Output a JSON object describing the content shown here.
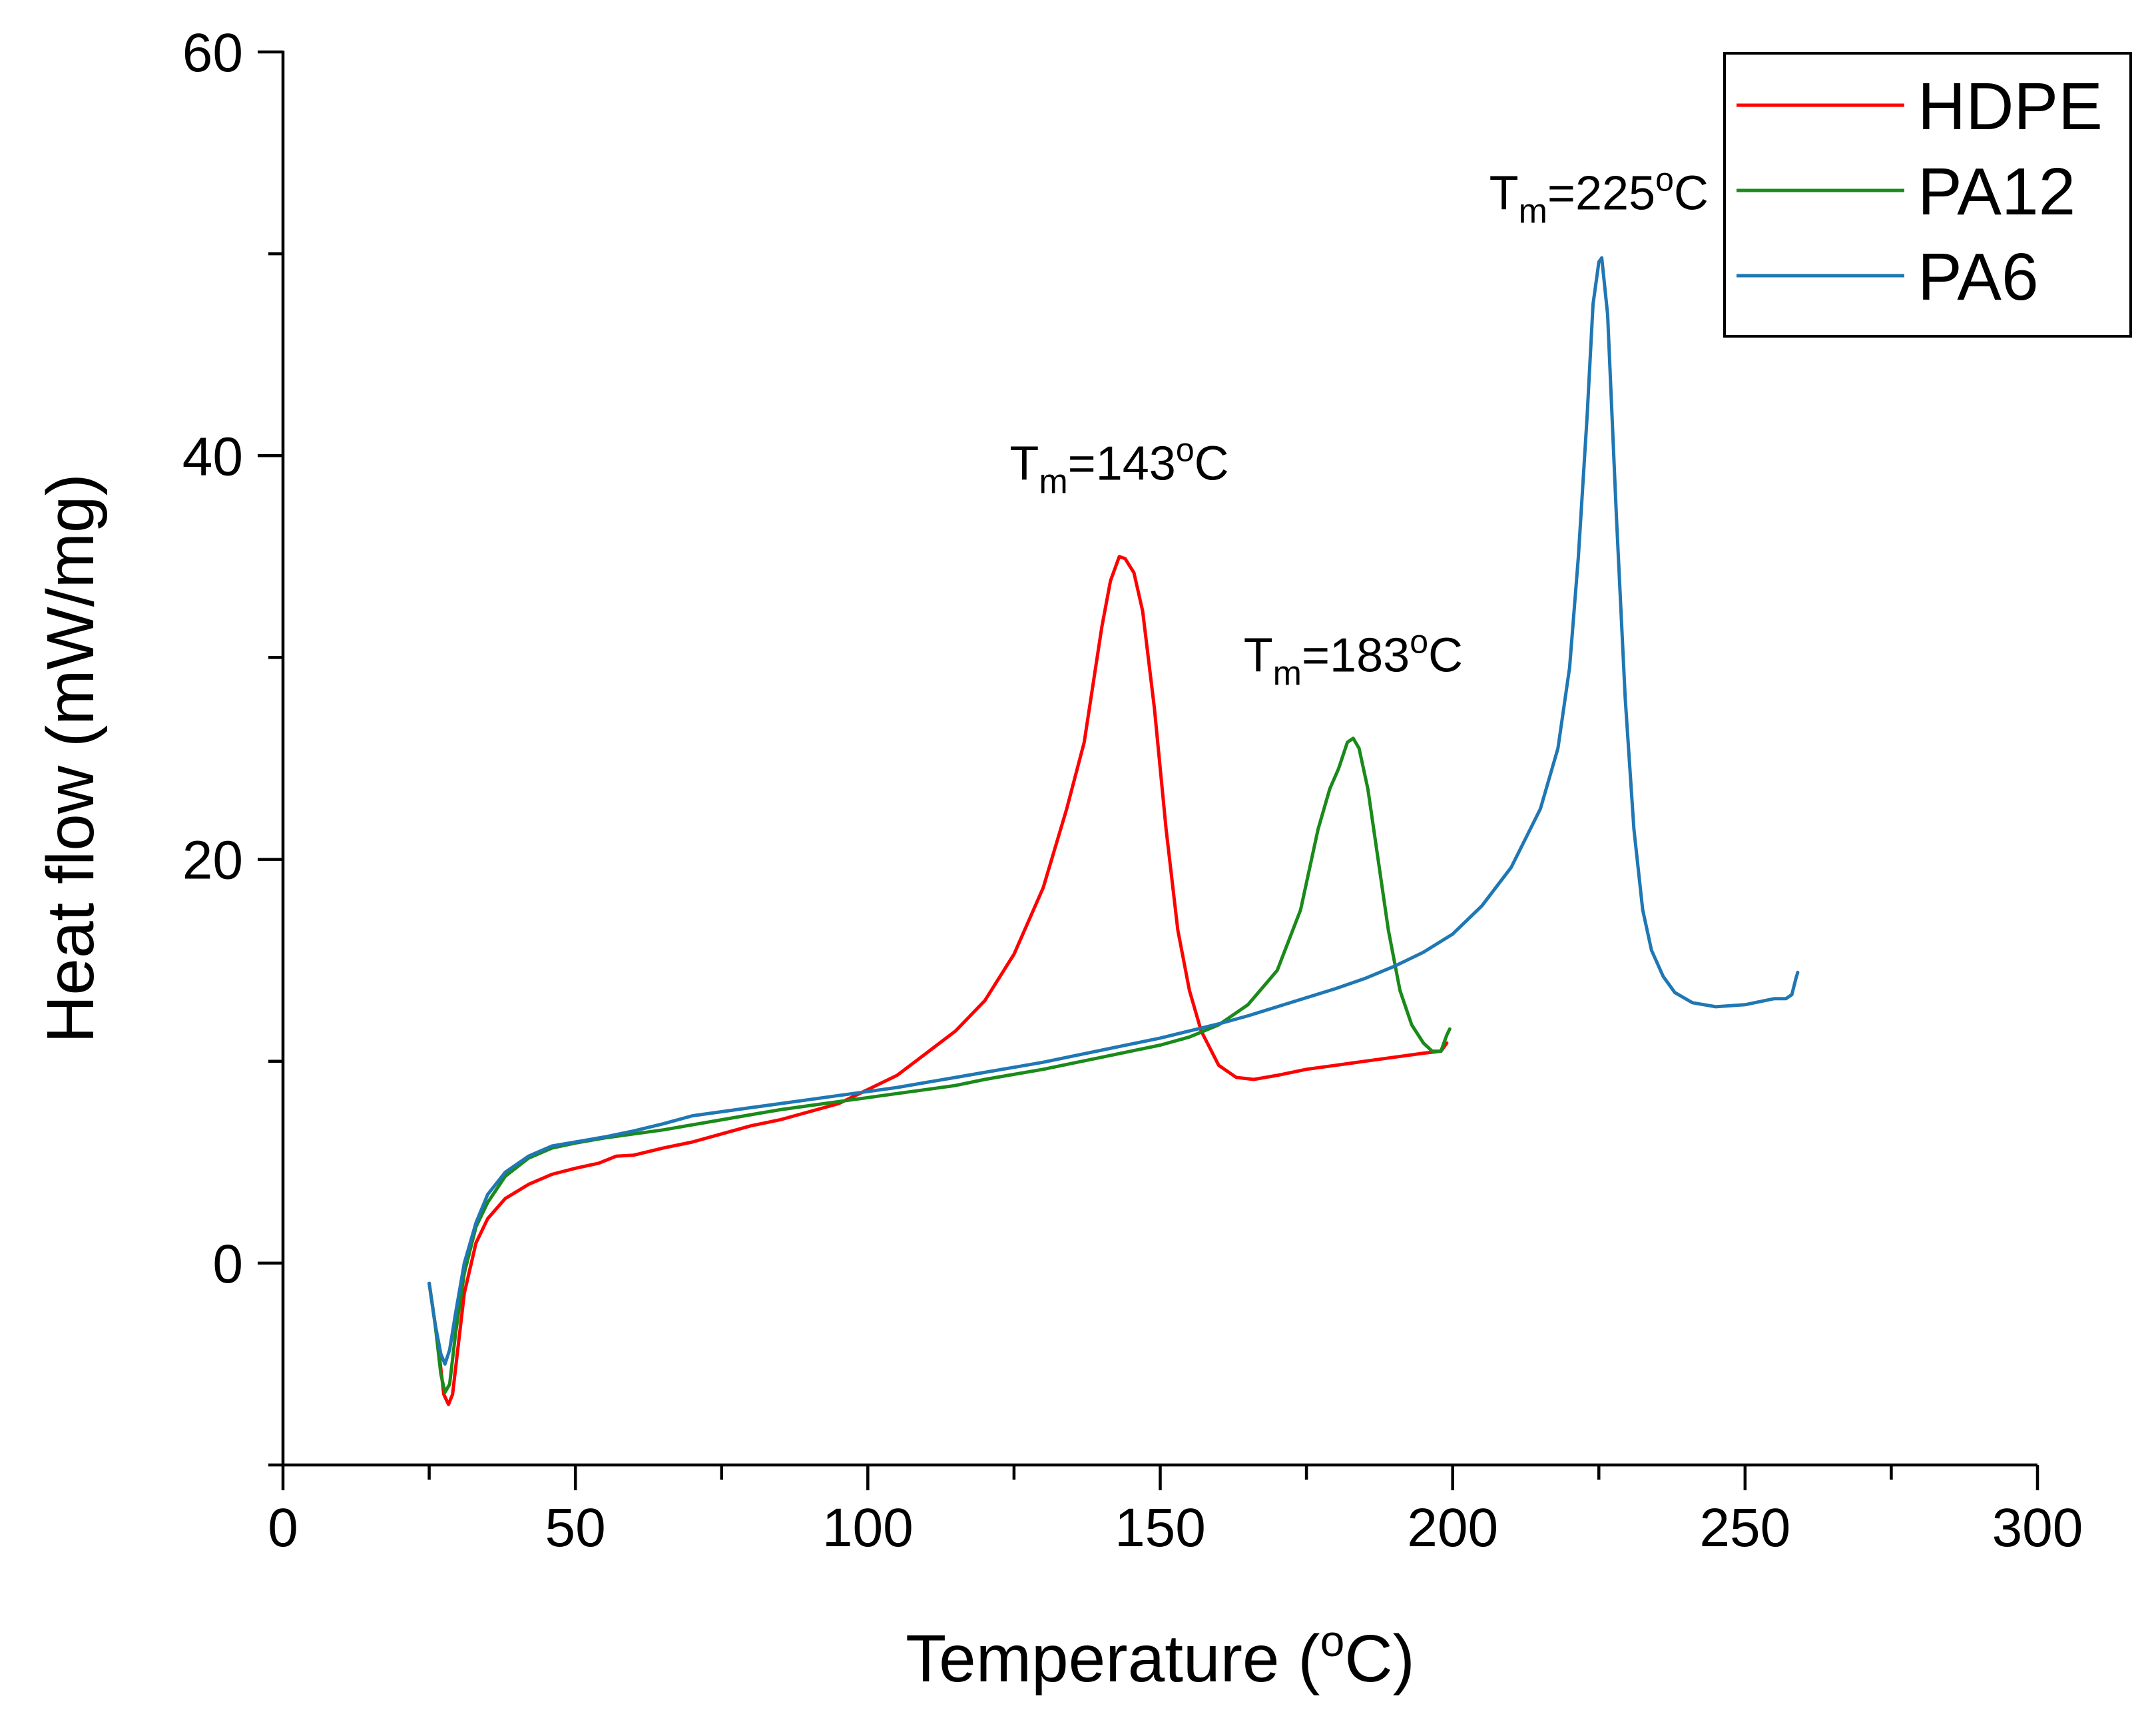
{
  "chart_data": {
    "type": "line",
    "title": "",
    "xlabel": "Temperature (",
    "xlabel_sup": "o",
    "xlabel_end": "C)",
    "ylabel": "Heat flow (mW/mg)",
    "xlim": [
      0,
      300
    ],
    "ylim": [
      -10,
      60
    ],
    "xticks": [
      0,
      50,
      100,
      150,
      200,
      250,
      300
    ],
    "yticks": [
      0,
      20,
      40,
      60
    ],
    "grid": false,
    "legend_position": "top-right",
    "series": [
      {
        "name": "HDPE",
        "color": "#ff0000",
        "points": [
          [
            25,
            -1
          ],
          [
            26.5,
            -4
          ],
          [
            27.5,
            -6.5
          ],
          [
            28.3,
            -7
          ],
          [
            29,
            -6.5
          ],
          [
            30,
            -4
          ],
          [
            31,
            -1.5
          ],
          [
            33,
            1
          ],
          [
            35,
            2.2
          ],
          [
            38,
            3.2
          ],
          [
            42,
            3.9
          ],
          [
            46,
            4.4
          ],
          [
            50,
            4.7
          ],
          [
            54,
            4.95
          ],
          [
            57,
            5.3
          ],
          [
            60,
            5.35
          ],
          [
            65,
            5.7
          ],
          [
            70,
            6
          ],
          [
            75,
            6.4
          ],
          [
            80,
            6.8
          ],
          [
            85,
            7.1
          ],
          [
            90,
            7.5
          ],
          [
            95,
            7.9
          ],
          [
            100,
            8.6
          ],
          [
            105,
            9.3
          ],
          [
            110,
            10.4
          ],
          [
            115,
            11.5
          ],
          [
            120,
            13
          ],
          [
            125,
            15.3
          ],
          [
            130,
            18.6
          ],
          [
            134,
            22.5
          ],
          [
            137,
            25.8
          ],
          [
            140,
            31.5
          ],
          [
            141.5,
            33.8
          ],
          [
            143,
            35
          ],
          [
            144,
            34.9
          ],
          [
            145.5,
            34.2
          ],
          [
            147,
            32.3
          ],
          [
            149,
            27.5
          ],
          [
            151,
            21.5
          ],
          [
            153,
            16.5
          ],
          [
            155,
            13.5
          ],
          [
            157,
            11.5
          ],
          [
            160,
            9.8
          ],
          [
            163,
            9.2
          ],
          [
            166,
            9.1
          ],
          [
            170,
            9.3
          ],
          [
            175,
            9.6
          ],
          [
            180,
            9.8
          ],
          [
            185,
            10
          ],
          [
            190,
            10.2
          ],
          [
            195,
            10.4
          ],
          [
            198,
            10.5
          ],
          [
            199,
            10.9
          ]
        ]
      },
      {
        "name": "PA12",
        "color": "#1a8a1a",
        "points": [
          [
            25,
            -1
          ],
          [
            26,
            -3
          ],
          [
            27,
            -5.5
          ],
          [
            27.7,
            -6.4
          ],
          [
            28.5,
            -6
          ],
          [
            29.5,
            -3.5
          ],
          [
            31,
            -0.5
          ],
          [
            33,
            1.8
          ],
          [
            35,
            3
          ],
          [
            38,
            4.3
          ],
          [
            42,
            5.2
          ],
          [
            46,
            5.7
          ],
          [
            50,
            5.95
          ],
          [
            55,
            6.2
          ],
          [
            60,
            6.4
          ],
          [
            65,
            6.6
          ],
          [
            70,
            6.85
          ],
          [
            75,
            7.1
          ],
          [
            80,
            7.35
          ],
          [
            85,
            7.6
          ],
          [
            90,
            7.8
          ],
          [
            95,
            8
          ],
          [
            100,
            8.2
          ],
          [
            105,
            8.4
          ],
          [
            110,
            8.6
          ],
          [
            115,
            8.8
          ],
          [
            120,
            9.1
          ],
          [
            125,
            9.35
          ],
          [
            130,
            9.6
          ],
          [
            135,
            9.9
          ],
          [
            140,
            10.2
          ],
          [
            145,
            10.5
          ],
          [
            150,
            10.8
          ],
          [
            155,
            11.2
          ],
          [
            160,
            11.8
          ],
          [
            165,
            12.8
          ],
          [
            170,
            14.5
          ],
          [
            174,
            17.5
          ],
          [
            177,
            21.5
          ],
          [
            179,
            23.5
          ],
          [
            180.5,
            24.5
          ],
          [
            182,
            25.8
          ],
          [
            183,
            26
          ],
          [
            184,
            25.5
          ],
          [
            185.5,
            23.5
          ],
          [
            187,
            20.5
          ],
          [
            189,
            16.5
          ],
          [
            191,
            13.5
          ],
          [
            193,
            11.8
          ],
          [
            195,
            10.9
          ],
          [
            196.5,
            10.5
          ],
          [
            198,
            10.5
          ],
          [
            199,
            11.3
          ],
          [
            199.5,
            11.6
          ]
        ]
      },
      {
        "name": "PA6",
        "color": "#1f77b4",
        "points": [
          [
            25,
            -1
          ],
          [
            26,
            -3
          ],
          [
            27,
            -4.5
          ],
          [
            27.7,
            -5
          ],
          [
            28.5,
            -4.3
          ],
          [
            29.5,
            -2.5
          ],
          [
            31,
            0
          ],
          [
            33,
            2
          ],
          [
            35,
            3.4
          ],
          [
            38,
            4.5
          ],
          [
            42,
            5.3
          ],
          [
            46,
            5.8
          ],
          [
            50,
            6
          ],
          [
            55,
            6.25
          ],
          [
            60,
            6.55
          ],
          [
            65,
            6.9
          ],
          [
            70,
            7.3
          ],
          [
            75,
            7.5
          ],
          [
            80,
            7.7
          ],
          [
            85,
            7.9
          ],
          [
            90,
            8.1
          ],
          [
            95,
            8.3
          ],
          [
            100,
            8.5
          ],
          [
            105,
            8.7
          ],
          [
            110,
            8.95
          ],
          [
            115,
            9.2
          ],
          [
            120,
            9.45
          ],
          [
            125,
            9.7
          ],
          [
            130,
            9.95
          ],
          [
            135,
            10.25
          ],
          [
            140,
            10.55
          ],
          [
            145,
            10.85
          ],
          [
            150,
            11.15
          ],
          [
            155,
            11.5
          ],
          [
            160,
            11.85
          ],
          [
            165,
            12.25
          ],
          [
            170,
            12.7
          ],
          [
            175,
            13.15
          ],
          [
            180,
            13.6
          ],
          [
            185,
            14.1
          ],
          [
            190,
            14.7
          ],
          [
            195,
            15.4
          ],
          [
            200,
            16.3
          ],
          [
            205,
            17.7
          ],
          [
            210,
            19.6
          ],
          [
            215,
            22.5
          ],
          [
            218,
            25.5
          ],
          [
            220,
            29.5
          ],
          [
            221.5,
            35
          ],
          [
            223,
            42
          ],
          [
            224,
            47.5
          ],
          [
            225,
            49.6
          ],
          [
            225.5,
            49.8
          ],
          [
            226.5,
            47
          ],
          [
            228,
            37
          ],
          [
            229.5,
            28
          ],
          [
            231,
            21.5
          ],
          [
            232.5,
            17.5
          ],
          [
            234,
            15.5
          ],
          [
            236,
            14.2
          ],
          [
            238,
            13.4
          ],
          [
            241,
            12.9
          ],
          [
            245,
            12.7
          ],
          [
            250,
            12.8
          ],
          [
            255,
            13.1
          ],
          [
            257,
            13.1
          ],
          [
            258,
            13.3
          ],
          [
            258.7,
            14.1
          ],
          [
            259,
            14.4
          ]
        ]
      }
    ],
    "annotations": [
      {
        "text_main": "T",
        "text_sub": "m",
        "text_rest": "=143",
        "text_sup": "o",
        "text_end": "C",
        "x": 143,
        "y": 38.8
      },
      {
        "text_main": "T",
        "text_sub": "m",
        "text_rest": "=183",
        "text_sup": "o",
        "text_end": "C",
        "x": 183,
        "y": 29.3
      },
      {
        "text_main": "T",
        "text_sub": "m",
        "text_rest": "=225",
        "text_sup": "o",
        "text_end": "C",
        "x": 225,
        "y": 52.2
      }
    ]
  }
}
